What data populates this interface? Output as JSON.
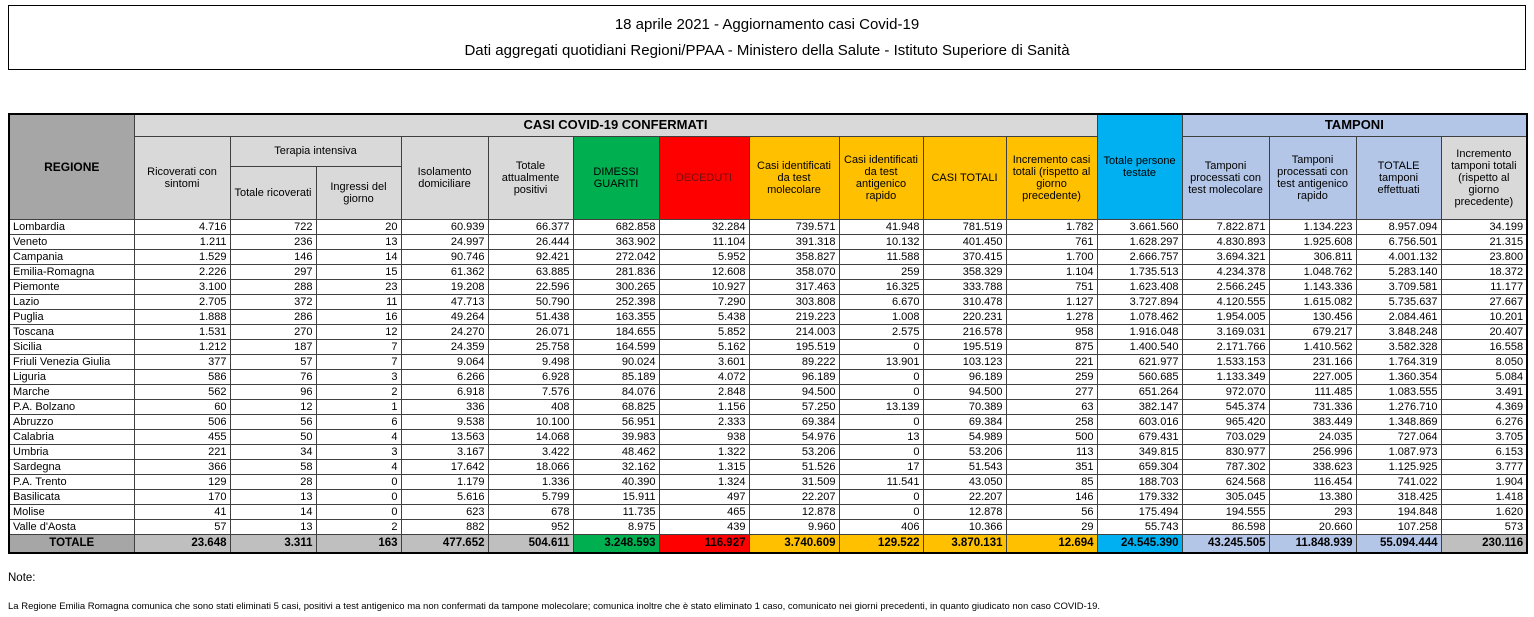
{
  "title": {
    "line1": "18 aprile 2021 - Aggiornamento casi Covid-19",
    "line2": "Dati aggregati quotidiani Regioni/PPAA - Ministero della Salute - Istituto Superiore di Sanità"
  },
  "colors": {
    "green": "#00B050",
    "red": "#FF0000",
    "yellow": "#FFC000",
    "cyan": "#00B0F0",
    "light_blue": "#B4C6E7",
    "header_gray": "#D9D9D9",
    "dark_gray": "#A6A6A6",
    "total_gray": "#BFBFBF"
  },
  "table": {
    "headers": {
      "regione": "REGIONE",
      "casi_confermati_band": "CASI COVID-19 CONFERMATI",
      "tamponi_band": "TAMPONI",
      "ricoverati_sintomi": "Ricoverati con sintomi",
      "terapia_intensiva": "Terapia intensiva",
      "totale_ricoverati": "Totale ricoverati",
      "ingressi_giorno": "Ingressi del giorno",
      "isolamento_domiciliare": "Isolamento domiciliare",
      "totale_attualmente_positivi": "Totale attualmente positivi",
      "dimessi_guariti": "DIMESSI GUARITI",
      "deceduti": "DECEDUTI",
      "casi_test_molecolare": "Casi identificati da test molecolare",
      "casi_test_antigenico": "Casi identificati da test antigenico rapido",
      "casi_totali": "CASI TOTALI",
      "incremento_casi": "Incremento casi totali (rispetto al giorno precedente)",
      "totale_persone_testate": "Totale persone testate",
      "tamponi_molecolare": "Tamponi processati con test molecolare",
      "tamponi_antigenico": "Tamponi processati con test antigenico rapido",
      "totale_tamponi": "TOTALE tamponi effettuati",
      "incremento_tamponi": "Incremento tamponi totali (rispetto al giorno precedente)"
    },
    "rows": [
      {
        "regione": "Lombardia",
        "values": [
          "4.716",
          "722",
          "20",
          "60.939",
          "66.377",
          "682.858",
          "32.284",
          "739.571",
          "41.948",
          "781.519",
          "1.782",
          "3.661.560",
          "7.822.871",
          "1.134.223",
          "8.957.094",
          "34.199"
        ]
      },
      {
        "regione": "Veneto",
        "values": [
          "1.211",
          "236",
          "13",
          "24.997",
          "26.444",
          "363.902",
          "11.104",
          "391.318",
          "10.132",
          "401.450",
          "761",
          "1.628.297",
          "4.830.893",
          "1.925.608",
          "6.756.501",
          "21.315"
        ]
      },
      {
        "regione": "Campania",
        "values": [
          "1.529",
          "146",
          "14",
          "90.746",
          "92.421",
          "272.042",
          "5.952",
          "358.827",
          "11.588",
          "370.415",
          "1.700",
          "2.666.757",
          "3.694.321",
          "306.811",
          "4.001.132",
          "23.800"
        ]
      },
      {
        "regione": "Emilia-Romagna",
        "values": [
          "2.226",
          "297",
          "15",
          "61.362",
          "63.885",
          "281.836",
          "12.608",
          "358.070",
          "259",
          "358.329",
          "1.104",
          "1.735.513",
          "4.234.378",
          "1.048.762",
          "5.283.140",
          "18.372"
        ]
      },
      {
        "regione": "Piemonte",
        "values": [
          "3.100",
          "288",
          "23",
          "19.208",
          "22.596",
          "300.265",
          "10.927",
          "317.463",
          "16.325",
          "333.788",
          "751",
          "1.623.408",
          "2.566.245",
          "1.143.336",
          "3.709.581",
          "11.177"
        ]
      },
      {
        "regione": "Lazio",
        "values": [
          "2.705",
          "372",
          "11",
          "47.713",
          "50.790",
          "252.398",
          "7.290",
          "303.808",
          "6.670",
          "310.478",
          "1.127",
          "3.727.894",
          "4.120.555",
          "1.615.082",
          "5.735.637",
          "27.667"
        ]
      },
      {
        "regione": "Puglia",
        "values": [
          "1.888",
          "286",
          "16",
          "49.264",
          "51.438",
          "163.355",
          "5.438",
          "219.223",
          "1.008",
          "220.231",
          "1.278",
          "1.078.462",
          "1.954.005",
          "130.456",
          "2.084.461",
          "10.201"
        ]
      },
      {
        "regione": "Toscana",
        "values": [
          "1.531",
          "270",
          "12",
          "24.270",
          "26.071",
          "184.655",
          "5.852",
          "214.003",
          "2.575",
          "216.578",
          "958",
          "1.916.048",
          "3.169.031",
          "679.217",
          "3.848.248",
          "20.407"
        ]
      },
      {
        "regione": "Sicilia",
        "values": [
          "1.212",
          "187",
          "7",
          "24.359",
          "25.758",
          "164.599",
          "5.162",
          "195.519",
          "0",
          "195.519",
          "875",
          "1.400.540",
          "2.171.766",
          "1.410.562",
          "3.582.328",
          "16.558"
        ]
      },
      {
        "regione": "Friuli Venezia Giulia",
        "values": [
          "377",
          "57",
          "7",
          "9.064",
          "9.498",
          "90.024",
          "3.601",
          "89.222",
          "13.901",
          "103.123",
          "221",
          "621.977",
          "1.533.153",
          "231.166",
          "1.764.319",
          "8.050"
        ]
      },
      {
        "regione": "Liguria",
        "values": [
          "586",
          "76",
          "3",
          "6.266",
          "6.928",
          "85.189",
          "4.072",
          "96.189",
          "0",
          "96.189",
          "259",
          "560.685",
          "1.133.349",
          "227.005",
          "1.360.354",
          "5.084"
        ]
      },
      {
        "regione": "Marche",
        "values": [
          "562",
          "96",
          "2",
          "6.918",
          "7.576",
          "84.076",
          "2.848",
          "94.500",
          "0",
          "94.500",
          "277",
          "651.264",
          "972.070",
          "111.485",
          "1.083.555",
          "3.491"
        ]
      },
      {
        "regione": "P.A. Bolzano",
        "values": [
          "60",
          "12",
          "1",
          "336",
          "408",
          "68.825",
          "1.156",
          "57.250",
          "13.139",
          "70.389",
          "63",
          "382.147",
          "545.374",
          "731.336",
          "1.276.710",
          "4.369"
        ]
      },
      {
        "regione": "Abruzzo",
        "values": [
          "506",
          "56",
          "6",
          "9.538",
          "10.100",
          "56.951",
          "2.333",
          "69.384",
          "0",
          "69.384",
          "258",
          "603.016",
          "965.420",
          "383.449",
          "1.348.869",
          "6.276"
        ]
      },
      {
        "regione": "Calabria",
        "values": [
          "455",
          "50",
          "4",
          "13.563",
          "14.068",
          "39.983",
          "938",
          "54.976",
          "13",
          "54.989",
          "500",
          "679.431",
          "703.029",
          "24.035",
          "727.064",
          "3.705"
        ]
      },
      {
        "regione": "Umbria",
        "values": [
          "221",
          "34",
          "3",
          "3.167",
          "3.422",
          "48.462",
          "1.322",
          "53.206",
          "0",
          "53.206",
          "113",
          "349.815",
          "830.977",
          "256.996",
          "1.087.973",
          "6.153"
        ]
      },
      {
        "regione": "Sardegna",
        "values": [
          "366",
          "58",
          "4",
          "17.642",
          "18.066",
          "32.162",
          "1.315",
          "51.526",
          "17",
          "51.543",
          "351",
          "659.304",
          "787.302",
          "338.623",
          "1.125.925",
          "3.777"
        ]
      },
      {
        "regione": "P.A. Trento",
        "values": [
          "129",
          "28",
          "0",
          "1.179",
          "1.336",
          "40.390",
          "1.324",
          "31.509",
          "11.541",
          "43.050",
          "85",
          "188.703",
          "624.568",
          "116.454",
          "741.022",
          "1.904"
        ]
      },
      {
        "regione": "Basilicata",
        "values": [
          "170",
          "13",
          "0",
          "5.616",
          "5.799",
          "15.911",
          "497",
          "22.207",
          "0",
          "22.207",
          "146",
          "179.332",
          "305.045",
          "13.380",
          "318.425",
          "1.418"
        ]
      },
      {
        "regione": "Molise",
        "values": [
          "41",
          "14",
          "0",
          "623",
          "678",
          "11.735",
          "465",
          "12.878",
          "0",
          "12.878",
          "56",
          "175.494",
          "194.555",
          "293",
          "194.848",
          "1.620"
        ]
      },
      {
        "regione": "Valle d'Aosta",
        "values": [
          "57",
          "13",
          "2",
          "882",
          "952",
          "8.975",
          "439",
          "9.960",
          "406",
          "10.366",
          "29",
          "55.743",
          "86.598",
          "20.660",
          "107.258",
          "573"
        ]
      }
    ],
    "totale": {
      "label": "TOTALE",
      "values": [
        "23.648",
        "3.311",
        "163",
        "477.652",
        "504.611",
        "3.248.593",
        "116.927",
        "3.740.609",
        "129.522",
        "3.870.131",
        "12.694",
        "24.545.390",
        "43.245.505",
        "11.848.939",
        "55.094.444",
        "230.116"
      ]
    }
  },
  "notes": {
    "heading": "Note:",
    "line1": "La Regione Emilia Romagna comunica che sono stati eliminati 5 casi, positivi a test antigenico ma non confermati da tampone molecolare; comunica inoltre che è stato eliminato 1 caso, comunicato nei giorni precedenti, in quanto giudicato non caso COVID-19."
  }
}
